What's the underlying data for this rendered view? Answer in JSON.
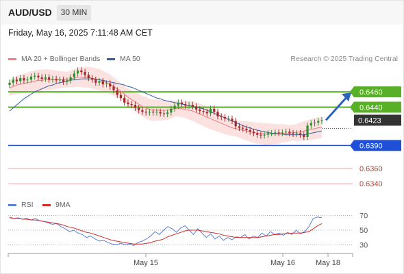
{
  "header": {
    "symbol": "AUD/USD",
    "timeframe": "30 MIN"
  },
  "datetime": "Friday, May 16, 2025 7:11:48 AM CET",
  "legend": {
    "ma20_label": "MA 20 + Bollinger Bands",
    "ma50_label": "MA 50",
    "credit": "Research © 2025 Trading Central"
  },
  "rsi_legend": {
    "rsi_label": "RSI",
    "ma_label": "9MA"
  },
  "colors": {
    "ma20": "#f07b7b",
    "ma50": "#2f5d9e",
    "bollinger": "#fbd7d7",
    "candle_up": "#2f8f2f",
    "candle_down": "#a12a2a",
    "resistance": "#58b026",
    "support": "#1f4fd6",
    "target": "#f0a0a0",
    "price_tag": "#333333",
    "rsi": "#5b7fd4",
    "rsi_ma": "#d42a2a"
  },
  "chart_data": [
    {
      "type": "candlestick",
      "ylim": [
        0.6325,
        0.6495
      ],
      "levels": [
        {
          "value": 0.646,
          "label": "0.6460",
          "kind": "resistance"
        },
        {
          "value": 0.644,
          "label": "0.6440",
          "kind": "resistance"
        },
        {
          "value": 0.6423,
          "label": "0.6423",
          "kind": "current"
        },
        {
          "value": 0.639,
          "label": "0.6390",
          "kind": "support"
        },
        {
          "value": 0.636,
          "label": "0.6360",
          "kind": "target"
        },
        {
          "value": 0.634,
          "label": "0.6340",
          "kind": "target"
        }
      ],
      "x_labels": [
        "May 15",
        "May 16",
        "May 18"
      ],
      "close": [
        0.6472,
        0.6476,
        0.6474,
        0.6478,
        0.6475,
        0.6476,
        0.648,
        0.6481,
        0.6479,
        0.6477,
        0.6479,
        0.6476,
        0.6477,
        0.6475,
        0.6476,
        0.6473,
        0.6475,
        0.6479,
        0.6484,
        0.6488,
        0.6486,
        0.6482,
        0.6478,
        0.6476,
        0.6472,
        0.6474,
        0.647,
        0.6471,
        0.6467,
        0.6462,
        0.6456,
        0.6452,
        0.6446,
        0.6444,
        0.6443,
        0.6439,
        0.6436,
        0.6434,
        0.6433,
        0.6434,
        0.6433,
        0.6434,
        0.6432,
        0.6431,
        0.6433,
        0.6438,
        0.6442,
        0.6446,
        0.6444,
        0.6442,
        0.6443,
        0.6441,
        0.6437,
        0.6435,
        0.6434,
        0.6432,
        0.6438,
        0.6434,
        0.6428,
        0.6427,
        0.6425,
        0.6425,
        0.6422,
        0.6415,
        0.6413,
        0.6412,
        0.641,
        0.6408,
        0.6406,
        0.6404,
        0.6403,
        0.6404,
        0.6406,
        0.6406,
        0.6407,
        0.6406,
        0.6407,
        0.6408,
        0.6406,
        0.6405,
        0.6406,
        0.6404,
        0.6401,
        0.6416,
        0.6419,
        0.642,
        0.6422,
        0.6423
      ],
      "ma20": [
        0.6465,
        0.6467,
        0.6469,
        0.647,
        0.6471,
        0.6472,
        0.6473,
        0.6474,
        0.6475,
        0.6475,
        0.6476,
        0.6476,
        0.6476,
        0.6476,
        0.6476,
        0.6476,
        0.6476,
        0.6477,
        0.6478,
        0.6479,
        0.6479,
        0.6479,
        0.6479,
        0.6478,
        0.6477,
        0.6476,
        0.6474,
        0.6472,
        0.647,
        0.6467,
        0.6464,
        0.6461,
        0.6457,
        0.6453,
        0.645,
        0.6447,
        0.6444,
        0.6441,
        0.6439,
        0.6437,
        0.6436,
        0.6436,
        0.6436,
        0.6436,
        0.6436,
        0.6437,
        0.6438,
        0.6438,
        0.6438,
        0.6437,
        0.6436,
        0.6435,
        0.6433,
        0.6431,
        0.6429,
        0.6427,
        0.6425,
        0.6423,
        0.6421,
        0.6419,
        0.6417,
        0.6415,
        0.6413,
        0.6412,
        0.6411,
        0.641,
        0.6409,
        0.6408,
        0.6407,
        0.6406,
        0.6406,
        0.6405,
        0.6405,
        0.6405,
        0.6405,
        0.6405,
        0.6406,
        0.6406,
        0.6406,
        0.6407,
        0.6407,
        0.6408,
        0.6409,
        0.641,
        0.6411,
        0.6412,
        0.6413,
        0.6414
      ],
      "ma50": [
        0.6435,
        0.6439,
        0.6443,
        0.6447,
        0.6451,
        0.6454,
        0.6457,
        0.646,
        0.6462,
        0.6464,
        0.6466,
        0.6468,
        0.6469,
        0.6471,
        0.6472,
        0.6473,
        0.6474,
        0.6475,
        0.6476,
        0.6476,
        0.6477,
        0.6477,
        0.6477,
        0.6477,
        0.6476,
        0.6476,
        0.6475,
        0.6474,
        0.6473,
        0.6472,
        0.6471,
        0.647,
        0.6469,
        0.6467,
        0.6466,
        0.6464,
        0.6462,
        0.646,
        0.6458,
        0.6456,
        0.6454,
        0.6452,
        0.6451,
        0.6449,
        0.6448,
        0.6447,
        0.6446,
        0.6445,
        0.6444,
        0.6443,
        0.6442,
        0.6441,
        0.644,
        0.6439,
        0.6438,
        0.6436,
        0.6434,
        0.6432,
        0.643,
        0.6428,
        0.6426,
        0.6424,
        0.6422,
        0.642,
        0.6418,
        0.6416,
        0.6414,
        0.6413,
        0.6411,
        0.641,
        0.6409,
        0.6408,
        0.6407,
        0.6406,
        0.6406,
        0.6405,
        0.6405,
        0.6404,
        0.6404,
        0.6404,
        0.6404,
        0.6404,
        0.6404,
        0.6405,
        0.6406,
        0.6407,
        0.6408,
        0.6409
      ]
    },
    {
      "type": "line",
      "ylim": [
        20,
        80
      ],
      "y_ticks": [
        70,
        50,
        30
      ],
      "series": [
        {
          "name": "RSI",
          "values": [
            68,
            66,
            67,
            65,
            66,
            64,
            66,
            63,
            62,
            60,
            58,
            59,
            55,
            52,
            48,
            50,
            46,
            44,
            40,
            42,
            38,
            35,
            36,
            33,
            31,
            30,
            32,
            30,
            31,
            29,
            33,
            35,
            38,
            42,
            48,
            44,
            50,
            55,
            52,
            47,
            53,
            56,
            50,
            44,
            52,
            46,
            40,
            45,
            38,
            42,
            36,
            40,
            37,
            41,
            40,
            44,
            38,
            42,
            40,
            46,
            42,
            48,
            44,
            46,
            43,
            47,
            44,
            50,
            45,
            48,
            55,
            66,
            68,
            67
          ]
        },
        {
          "name": "9MA",
          "values": [
            67,
            66,
            66,
            65,
            65,
            64,
            64,
            63,
            62,
            61,
            60,
            59,
            58,
            56,
            54,
            53,
            51,
            49,
            47,
            46,
            44,
            42,
            40,
            38,
            36,
            35,
            34,
            33,
            32,
            31,
            31,
            31,
            32,
            33,
            35,
            36,
            38,
            41,
            43,
            45,
            47,
            49,
            50,
            50,
            50,
            49,
            48,
            47,
            46,
            45,
            43,
            42,
            41,
            40,
            40,
            40,
            40,
            40,
            40,
            41,
            42,
            43,
            44,
            44,
            45,
            45,
            46,
            46,
            46,
            47,
            48,
            52,
            56,
            59
          ]
        }
      ]
    }
  ]
}
